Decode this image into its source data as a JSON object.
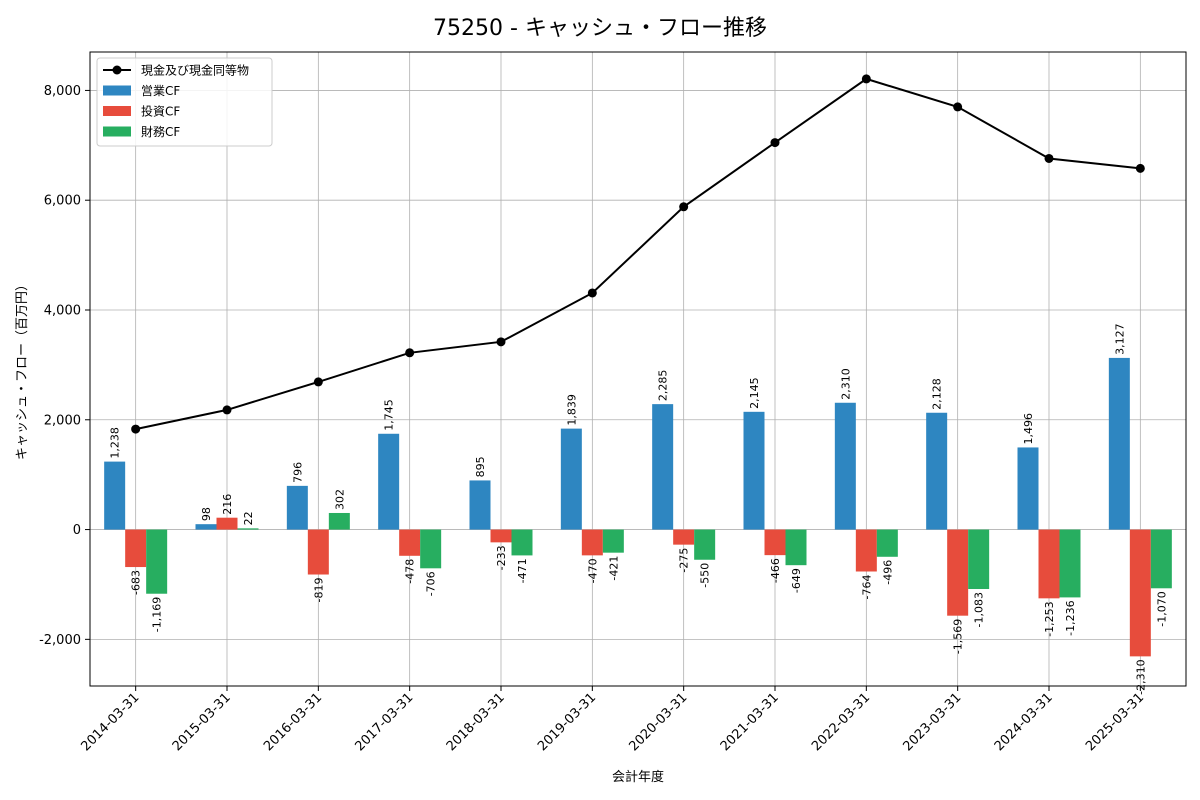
{
  "chart_data": {
    "type": "bar",
    "title": "75250 - キャッシュ・フロー推移",
    "xlabel": "会計年度",
    "ylabel": "キャッシュ・フロー（百万円）",
    "categories": [
      "2014-03-31",
      "2015-03-31",
      "2016-03-31",
      "2017-03-31",
      "2018-03-31",
      "2019-03-31",
      "2020-03-31",
      "2021-03-31",
      "2022-03-31",
      "2023-03-31",
      "2024-03-31",
      "2025-03-31"
    ],
    "ylim": [
      -2850,
      8700
    ],
    "yticks": [
      -2000,
      0,
      2000,
      4000,
      6000,
      8000
    ],
    "ytick_labels": [
      "-2,000",
      "0",
      "2,000",
      "4,000",
      "6,000",
      "8,000"
    ],
    "grid": true,
    "legend_position": "top-left",
    "series": [
      {
        "name": "営業CF",
        "type": "bar",
        "color": "#2e86c1",
        "values": [
          1238,
          98,
          796,
          1745,
          895,
          1839,
          2285,
          2145,
          2310,
          2128,
          1496,
          3127
        ],
        "labels": [
          "1,238",
          "98",
          "796",
          "1,745",
          "895",
          "1,839",
          "2,285",
          "2,145",
          "2,310",
          "2,128",
          "1,496",
          "3,127"
        ]
      },
      {
        "name": "投資CF",
        "type": "bar",
        "color": "#e74c3c",
        "values": [
          -683,
          216,
          -819,
          -478,
          -233,
          -470,
          -275,
          -466,
          -764,
          -1569,
          -1253,
          -2310
        ],
        "labels": [
          "-683",
          "216",
          "-819",
          "-478",
          "-233",
          "-470",
          "-275",
          "-466",
          "-764",
          "-1,569",
          "-1,253",
          "-2,310"
        ]
      },
      {
        "name": "財務CF",
        "type": "bar",
        "color": "#27ae60",
        "values": [
          -1169,
          22,
          302,
          -706,
          -471,
          -421,
          -550,
          -649,
          -496,
          -1083,
          -1236,
          -1070
        ],
        "labels": [
          "-1,169",
          "22",
          "302",
          "-706",
          "-471",
          "-421",
          "-550",
          "-649",
          "-496",
          "-1,083",
          "-1,236",
          "-1,070"
        ]
      },
      {
        "name": "現金及び現金同等物",
        "type": "line",
        "color": "#000000",
        "values": [
          1830,
          2180,
          2690,
          3220,
          3420,
          4310,
          5880,
          7050,
          8210,
          7700,
          6760,
          6580
        ]
      }
    ]
  }
}
